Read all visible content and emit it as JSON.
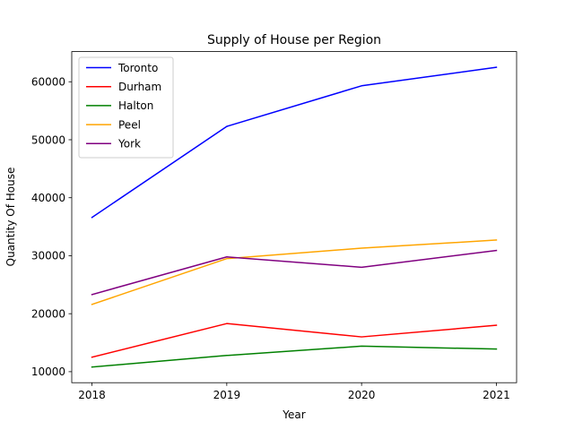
{
  "chart_data": {
    "type": "line",
    "title": "Supply of House per Region",
    "xlabel": "Year",
    "ylabel": "Quantity Of House",
    "x": [
      "2018",
      "2019",
      "2020",
      "2021"
    ],
    "xlim": [
      2017.85,
      2021.15
    ],
    "ylim": [
      8100,
      65200
    ],
    "yticks": [
      10000,
      20000,
      30000,
      40000,
      50000,
      60000
    ],
    "grid": false,
    "legend_position": "top-left",
    "series": [
      {
        "name": "Toronto",
        "color": "#0000ff",
        "values": [
          36600,
          52300,
          59300,
          62500
        ]
      },
      {
        "name": "Durham",
        "color": "#ff0000",
        "values": [
          12500,
          18300,
          16000,
          18000
        ]
      },
      {
        "name": "Halton",
        "color": "#008000",
        "values": [
          10800,
          12800,
          14400,
          13900
        ]
      },
      {
        "name": "Peel",
        "color": "#ffa500",
        "values": [
          21600,
          29500,
          31300,
          32700
        ]
      },
      {
        "name": "York",
        "color": "#800080",
        "values": [
          23300,
          29800,
          28000,
          30900
        ]
      }
    ]
  }
}
